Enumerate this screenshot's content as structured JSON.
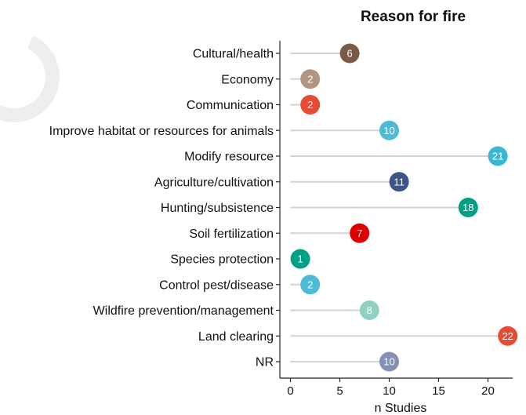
{
  "chart_data": {
    "type": "lollipop",
    "title": "Reason for fire",
    "xlabel": "n Studies",
    "ylabel": "",
    "xlim": [
      0,
      22.5
    ],
    "xticks": [
      0,
      5,
      10,
      15,
      20
    ],
    "grid": false,
    "legend": "none",
    "categories": [
      "Cultural/health",
      "Economy",
      "Communication",
      "Improve habitat or resources for animals",
      "Modify resource",
      "Agriculture/cultivation",
      "Hunting/subsistence",
      "Soil fertilization",
      "Species protection",
      "Control pest/disease",
      "Wildfire prevention/management",
      "Land clearing",
      "NR"
    ],
    "values": [
      6,
      2,
      2,
      10,
      21,
      11,
      18,
      7,
      1,
      2,
      8,
      22,
      10
    ],
    "colors": [
      "#7a5a45",
      "#b0967f",
      "#e64b35",
      "#4dbbd5",
      "#3cb7d2",
      "#3c5488",
      "#00a087",
      "#dc0000",
      "#00a087",
      "#4dbbd5",
      "#91d1c2",
      "#e64b35",
      "#8491b4"
    ],
    "stem_color": "#d3d3d3"
  }
}
